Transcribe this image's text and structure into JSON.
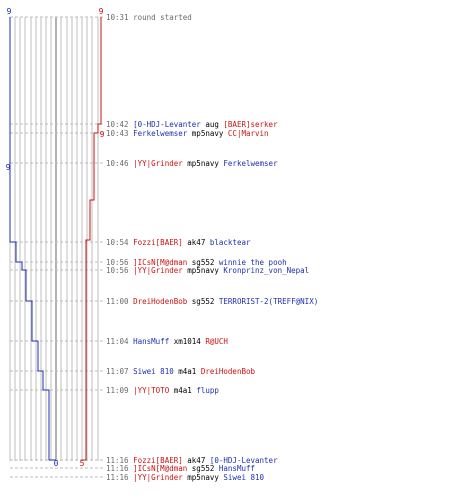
{
  "chart_data": {
    "type": "line",
    "title": "",
    "xlabel": "",
    "ylabel": "",
    "colors": {
      "blue": "#1f2fb0",
      "red": "#cc1111",
      "grid": "#bfbfbf",
      "center": "#666666",
      "dash": "#bdbdbd",
      "black": "#000000",
      "time": "#6a6a6a"
    },
    "top_labels": {
      "left": "9",
      "right": "9"
    },
    "side_labels": {
      "left": "9",
      "right": "9"
    },
    "bottom_labels": {
      "left": "0",
      "right": "5"
    },
    "series": [
      {
        "color": "blue",
        "start": 9,
        "end": 0
      },
      {
        "color": "red",
        "start": 0,
        "end": 9
      }
    ],
    "events": [
      {
        "time": "10:31",
        "text": "round started"
      },
      {
        "time": "10:42",
        "killer": "[0-HDJ-Levanter",
        "weapon": "aug",
        "victim": "[BAER]serker",
        "killer_color": "blue",
        "victim_color": "red"
      },
      {
        "time": "10:43",
        "killer": "Ferkelwemser",
        "weapon": "mp5navy",
        "victim": "CC|Marvin",
        "killer_color": "blue",
        "victim_color": "red"
      },
      {
        "time": "10:46",
        "killer": "|YY|Grinder",
        "weapon": "mp5navy",
        "victim": "Ferkelwemser",
        "killer_color": "red",
        "victim_color": "blue"
      },
      {
        "time": "10:54",
        "killer": "Fozzi[BAER]",
        "weapon": "ak47",
        "victim": "blacktear",
        "killer_color": "red",
        "victim_color": "blue"
      },
      {
        "time": "10:56",
        "killer": "]ICsN[M@dman",
        "weapon": "sg552",
        "victim": "winnie the pooh",
        "killer_color": "red",
        "victim_color": "blue"
      },
      {
        "time": "10:56",
        "killer": "|YY|Grinder",
        "weapon": "mp5navy",
        "victim": "Kronprinz_von_Nepal",
        "killer_color": "red",
        "victim_color": "blue"
      },
      {
        "time": "11:00",
        "killer": "DreiHodenBob",
        "weapon": "sg552",
        "victim": "TERRORIST-2(TREFF@NIX)",
        "killer_color": "red",
        "victim_color": "blue"
      },
      {
        "time": "11:04",
        "killer": "HansMuff",
        "weapon": "xm1014",
        "victim": "R@UCH",
        "killer_color": "blue",
        "victim_color": "red"
      },
      {
        "time": "11:07",
        "killer": "Siwei 810",
        "weapon": "m4a1",
        "victim": "DreiHodenBob",
        "killer_color": "blue",
        "victim_color": "red"
      },
      {
        "time": "11:09",
        "killer": "|YY|TOTO",
        "weapon": "m4a1",
        "victim": "flupp",
        "killer_color": "red",
        "victim_color": "blue"
      },
      {
        "time": "11:16",
        "killer": "Fozzi[BAER]",
        "weapon": "ak47",
        "victim": "[0-HDJ-Levanter",
        "killer_color": "red",
        "victim_color": "blue"
      },
      {
        "time": "11:16",
        "killer": "]ICsN[M@dman",
        "weapon": "sg552",
        "victim": "HansMuff",
        "killer_color": "red",
        "victim_color": "blue"
      },
      {
        "time": "11:16",
        "killer": "|YY|Grinder",
        "weapon": "mp5navy",
        "victim": "Siwei 810",
        "killer_color": "red",
        "victim_color": "blue"
      }
    ]
  }
}
